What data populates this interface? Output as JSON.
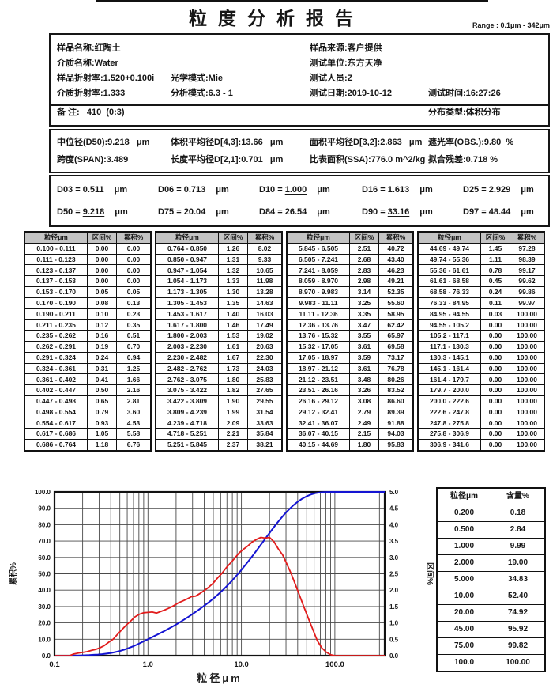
{
  "report": {
    "title": "粒度分析报告",
    "range_label": "Range : 0.1μm - 342μm"
  },
  "info": {
    "sample_name": "样品名称:红陶土",
    "medium_name": "介质名称:Water",
    "sample_ri": "样品折射率:1.520+0.100i",
    "medium_ri": "介质折射率:1.333",
    "optical_mode": "光学模式:Mie",
    "analysis_mode": "分析模式:6.3 - 1",
    "sample_source": "样品来源:客户提供",
    "test_unit": "测试单位:东方天净",
    "test_person": "测试人员:Z",
    "test_date": "测试日期:2019-10-12",
    "test_time": "测试时间:16:27:26",
    "remark": "备 注:   410  (0:3)",
    "dist_type": "分布类型:体积分布"
  },
  "stats": {
    "median": "中位径(D50):9.218   μm",
    "span": "跨度(SPAN):3.489",
    "d43": "体积平均径D[4,3]:13.66   μm",
    "d21": "长度平均径D[2,1]:0.701   μm",
    "d32": "面积平均径D[3,2]:2.863   μm",
    "ssa": "比表面积(SSA):776.0 m^2/kg",
    "obs": "遮光率(OBS.):9.80  %",
    "residual": "拟合残差:0.718 %"
  },
  "dvalues": [
    {
      "label": "D03",
      "value": "0.511",
      "unit": "μm",
      "u": false
    },
    {
      "label": "D06",
      "value": "0.713",
      "unit": "μm",
      "u": false
    },
    {
      "label": "D10",
      "value": "1.000",
      "unit": "μm",
      "u": true
    },
    {
      "label": "D16",
      "value": "1.613",
      "unit": "μm",
      "u": false
    },
    {
      "label": "D25",
      "value": "2.929",
      "unit": "μm",
      "u": false
    },
    {
      "label": "D50",
      "value": "9.218",
      "unit": "μm",
      "u": true
    },
    {
      "label": "D75",
      "value": "20.04",
      "unit": "μm",
      "u": false
    },
    {
      "label": "D84",
      "value": "26.54",
      "unit": "μm",
      "u": false
    },
    {
      "label": "D90",
      "value": "33.16",
      "unit": "μm",
      "u": true
    },
    {
      "label": "D97",
      "value": "48.44",
      "unit": "μm",
      "u": false
    }
  ],
  "table": {
    "headers": [
      "粒径μm",
      "区间%",
      "累积%"
    ],
    "groups": [
      [
        [
          "0.100 - 0.111",
          "0.00",
          "0.00"
        ],
        [
          "0.111 - 0.123",
          "0.00",
          "0.00"
        ],
        [
          "0.123 - 0.137",
          "0.00",
          "0.00"
        ],
        [
          "0.137 - 0.153",
          "0.00",
          "0.00"
        ],
        [
          "0.153 - 0.170",
          "0.05",
          "0.05"
        ],
        [
          "0.170 - 0.190",
          "0.08",
          "0.13"
        ],
        [
          "0.190 - 0.211",
          "0.10",
          "0.23"
        ],
        [
          "0.211 - 0.235",
          "0.12",
          "0.35"
        ],
        [
          "0.235 - 0.262",
          "0.16",
          "0.51"
        ],
        [
          "0.262 - 0.291",
          "0.19",
          "0.70"
        ],
        [
          "0.291 - 0.324",
          "0.24",
          "0.94"
        ],
        [
          "0.324 - 0.361",
          "0.31",
          "1.25"
        ],
        [
          "0.361 - 0.402",
          "0.41",
          "1.66"
        ],
        [
          "0.402 - 0.447",
          "0.50",
          "2.16"
        ],
        [
          "0.447 - 0.498",
          "0.65",
          "2.81"
        ],
        [
          "0.498 - 0.554",
          "0.79",
          "3.60"
        ],
        [
          "0.554 - 0.617",
          "0.93",
          "4.53"
        ],
        [
          "0.617 - 0.686",
          "1.05",
          "5.58"
        ],
        [
          "0.686 - 0.764",
          "1.18",
          "6.76"
        ]
      ],
      [
        [
          "0.764 - 0.850",
          "1.26",
          "8.02"
        ],
        [
          "0.850 - 0.947",
          "1.31",
          "9.33"
        ],
        [
          "0.947 - 1.054",
          "1.32",
          "10.65"
        ],
        [
          "1.054 - 1.173",
          "1.33",
          "11.98"
        ],
        [
          "1.173 - 1.305",
          "1.30",
          "13.28"
        ],
        [
          "1.305 - 1.453",
          "1.35",
          "14.63"
        ],
        [
          "1.453 - 1.617",
          "1.40",
          "16.03"
        ],
        [
          "1.617 - 1.800",
          "1.46",
          "17.49"
        ],
        [
          "1.800 - 2.003",
          "1.53",
          "19.02"
        ],
        [
          "2.003 - 2.230",
          "1.61",
          "20.63"
        ],
        [
          "2.230 - 2.482",
          "1.67",
          "22.30"
        ],
        [
          "2.482 - 2.762",
          "1.73",
          "24.03"
        ],
        [
          "2.762 - 3.075",
          "1.80",
          "25.83"
        ],
        [
          "3.075 - 3.422",
          "1.82",
          "27.65"
        ],
        [
          "3.422 - 3.809",
          "1.90",
          "29.55"
        ],
        [
          "3.809 - 4.239",
          "1.99",
          "31.54"
        ],
        [
          "4.239 - 4.718",
          "2.09",
          "33.63"
        ],
        [
          "4.718 - 5.251",
          "2.21",
          "35.84"
        ],
        [
          "5.251 - 5.845",
          "2.37",
          "38.21"
        ]
      ],
      [
        [
          "5.845 - 6.505",
          "2.51",
          "40.72"
        ],
        [
          "6.505 - 7.241",
          "2.68",
          "43.40"
        ],
        [
          "7.241 - 8.059",
          "2.83",
          "46.23"
        ],
        [
          "8.059 - 8.970",
          "2.98",
          "49.21"
        ],
        [
          "8.970 - 9.983",
          "3.14",
          "52.35"
        ],
        [
          "9.983 - 11.11",
          "3.25",
          "55.60"
        ],
        [
          "11.11 - 12.36",
          "3.35",
          "58.95"
        ],
        [
          "12.36 - 13.76",
          "3.47",
          "62.42"
        ],
        [
          "13.76 - 15.32",
          "3.55",
          "65.97"
        ],
        [
          "15.32 - 17.05",
          "3.61",
          "69.58"
        ],
        [
          "17.05 - 18.97",
          "3.59",
          "73.17"
        ],
        [
          "18.97 - 21.12",
          "3.61",
          "76.78"
        ],
        [
          "21.12 - 23.51",
          "3.48",
          "80.26"
        ],
        [
          "23.51 - 26.16",
          "3.26",
          "83.52"
        ],
        [
          "26.16 - 29.12",
          "3.08",
          "86.60"
        ],
        [
          "29.12 - 32.41",
          "2.79",
          "89.39"
        ],
        [
          "32.41 - 36.07",
          "2.49",
          "91.88"
        ],
        [
          "36.07 - 40.15",
          "2.15",
          "94.03"
        ],
        [
          "40.15 - 44.69",
          "1.80",
          "95.83"
        ]
      ],
      [
        [
          "44.69 - 49.74",
          "1.45",
          "97.28"
        ],
        [
          "49.74 - 55.36",
          "1.11",
          "98.39"
        ],
        [
          "55.36 - 61.61",
          "0.78",
          "99.17"
        ],
        [
          "61.61 - 68.58",
          "0.45",
          "99.62"
        ],
        [
          "68.58 - 76.33",
          "0.24",
          "99.86"
        ],
        [
          "76.33 - 84.95",
          "0.11",
          "99.97"
        ],
        [
          "84.95 - 94.55",
          "0.03",
          "100.00"
        ],
        [
          "94.55 - 105.2",
          "0.00",
          "100.00"
        ],
        [
          "105.2 - 117.1",
          "0.00",
          "100.00"
        ],
        [
          "117.1 - 130.3",
          "0.00",
          "100.00"
        ],
        [
          "130.3 - 145.1",
          "0.00",
          "100.00"
        ],
        [
          "145.1 - 161.4",
          "0.00",
          "100.00"
        ],
        [
          "161.4 - 179.7",
          "0.00",
          "100.00"
        ],
        [
          "179.7 - 200.0",
          "0.00",
          "100.00"
        ],
        [
          "200.0 - 222.6",
          "0.00",
          "100.00"
        ],
        [
          "222.6 - 247.8",
          "0.00",
          "100.00"
        ],
        [
          "247.8 - 275.8",
          "0.00",
          "100.00"
        ],
        [
          "275.8 - 306.9",
          "0.00",
          "100.00"
        ],
        [
          "306.9 - 341.6",
          "0.00",
          "100.00"
        ]
      ]
    ]
  },
  "side_table": {
    "headers": [
      "粒径μm",
      "含量%"
    ],
    "rows": [
      [
        "0.200",
        "0.18"
      ],
      [
        "0.500",
        "2.84"
      ],
      [
        "1.000",
        "9.99"
      ],
      [
        "2.000",
        "19.00"
      ],
      [
        "5.000",
        "34.83"
      ],
      [
        "10.00",
        "52.40"
      ],
      [
        "20.00",
        "74.92"
      ],
      [
        "45.00",
        "95.92"
      ],
      [
        "75.00",
        "99.82"
      ],
      [
        "100.0",
        "100.00"
      ]
    ]
  },
  "chart_data": {
    "type": "line",
    "xlabel": "粒径μm",
    "ylabel_left": "累积%",
    "ylabel_right": "区间%",
    "x_scale": "log",
    "xlim": [
      0.1,
      341.6
    ],
    "ylim_left": [
      0,
      100
    ],
    "ylim_right": [
      0,
      5
    ],
    "grid": true,
    "x_ticks": [
      {
        "v": 0.1,
        "label": "0.1"
      },
      {
        "v": 1,
        "label": "1.0"
      },
      {
        "v": 10,
        "label": "10.0"
      },
      {
        "v": 100,
        "label": "100.0"
      }
    ],
    "left_ticks": [
      "0.0",
      "10.0",
      "20.0",
      "30.0",
      "40.0",
      "50.0",
      "60.0",
      "70.0",
      "80.0",
      "90.0",
      "100.0"
    ],
    "right_ticks": [
      "0.0",
      "0.5",
      "1.0",
      "1.5",
      "2.0",
      "2.5",
      "3.0",
      "3.5",
      "4.0",
      "4.5",
      "5.0"
    ],
    "bin_edges": [
      0.1,
      0.111,
      0.123,
      0.137,
      0.153,
      0.17,
      0.19,
      0.211,
      0.235,
      0.262,
      0.291,
      0.324,
      0.361,
      0.402,
      0.447,
      0.498,
      0.554,
      0.617,
      0.686,
      0.764,
      0.85,
      0.947,
      1.054,
      1.173,
      1.305,
      1.453,
      1.617,
      1.8,
      2.003,
      2.23,
      2.482,
      2.762,
      3.075,
      3.422,
      3.809,
      4.239,
      4.718,
      5.251,
      5.845,
      6.505,
      7.241,
      8.059,
      8.97,
      9.983,
      11.11,
      12.36,
      13.76,
      15.32,
      17.05,
      18.97,
      21.12,
      23.51,
      26.16,
      29.12,
      32.41,
      36.07,
      40.15,
      44.69,
      49.74,
      55.36,
      61.61,
      68.58,
      76.33,
      84.95,
      94.55,
      105.2,
      117.1,
      130.3,
      145.1,
      161.4,
      179.7,
      200.0,
      222.6,
      247.8,
      275.8,
      306.9,
      341.6
    ],
    "series": [
      {
        "name": "累积%",
        "axis": "left",
        "color": "#1414d2",
        "values": [
          0.0,
          0.0,
          0.0,
          0.0,
          0.05,
          0.13,
          0.23,
          0.35,
          0.51,
          0.7,
          0.94,
          1.25,
          1.66,
          2.16,
          2.81,
          3.6,
          4.53,
          5.58,
          6.76,
          8.02,
          9.33,
          10.65,
          11.98,
          13.28,
          14.63,
          16.03,
          17.49,
          19.02,
          20.63,
          22.3,
          24.03,
          25.83,
          27.65,
          29.55,
          31.54,
          33.63,
          35.84,
          38.21,
          40.72,
          43.4,
          46.23,
          49.21,
          52.35,
          55.6,
          58.95,
          62.42,
          65.97,
          69.58,
          73.17,
          76.78,
          80.26,
          83.52,
          86.6,
          89.39,
          91.88,
          94.03,
          95.83,
          97.28,
          98.39,
          99.17,
          99.62,
          99.86,
          99.97,
          100.0,
          100.0,
          100.0,
          100.0,
          100.0,
          100.0,
          100.0,
          100.0,
          100.0,
          100.0,
          100.0,
          100.0,
          100.0
        ]
      },
      {
        "name": "区间%",
        "axis": "right",
        "color": "#e11b1b",
        "values": [
          0.0,
          0.0,
          0.0,
          0.0,
          0.05,
          0.08,
          0.1,
          0.12,
          0.16,
          0.19,
          0.24,
          0.31,
          0.41,
          0.5,
          0.65,
          0.79,
          0.93,
          1.05,
          1.18,
          1.26,
          1.31,
          1.32,
          1.33,
          1.3,
          1.35,
          1.4,
          1.46,
          1.53,
          1.61,
          1.67,
          1.73,
          1.8,
          1.82,
          1.9,
          1.99,
          2.09,
          2.21,
          2.37,
          2.51,
          2.68,
          2.83,
          2.98,
          3.14,
          3.25,
          3.35,
          3.47,
          3.55,
          3.61,
          3.59,
          3.61,
          3.48,
          3.26,
          3.08,
          2.79,
          2.49,
          2.15,
          1.8,
          1.45,
          1.11,
          0.78,
          0.45,
          0.24,
          0.11,
          0.03,
          0.0,
          0.0,
          0.0,
          0.0,
          0.0,
          0.0,
          0.0,
          0.0,
          0.0,
          0.0,
          0.0,
          0.0
        ]
      }
    ]
  }
}
